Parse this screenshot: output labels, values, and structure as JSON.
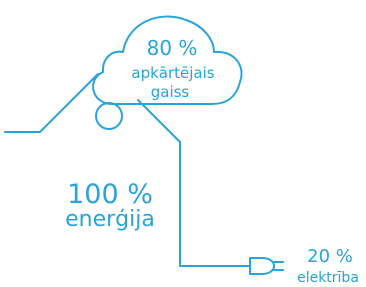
{
  "cloud": {
    "percent": "80 %",
    "lines": [
      "apkārtējais",
      "gaiss"
    ]
  },
  "house": {
    "percent": "100 %",
    "label": "enerģija"
  },
  "plug": {
    "percent": "20 %",
    "label": "elektrība"
  }
}
